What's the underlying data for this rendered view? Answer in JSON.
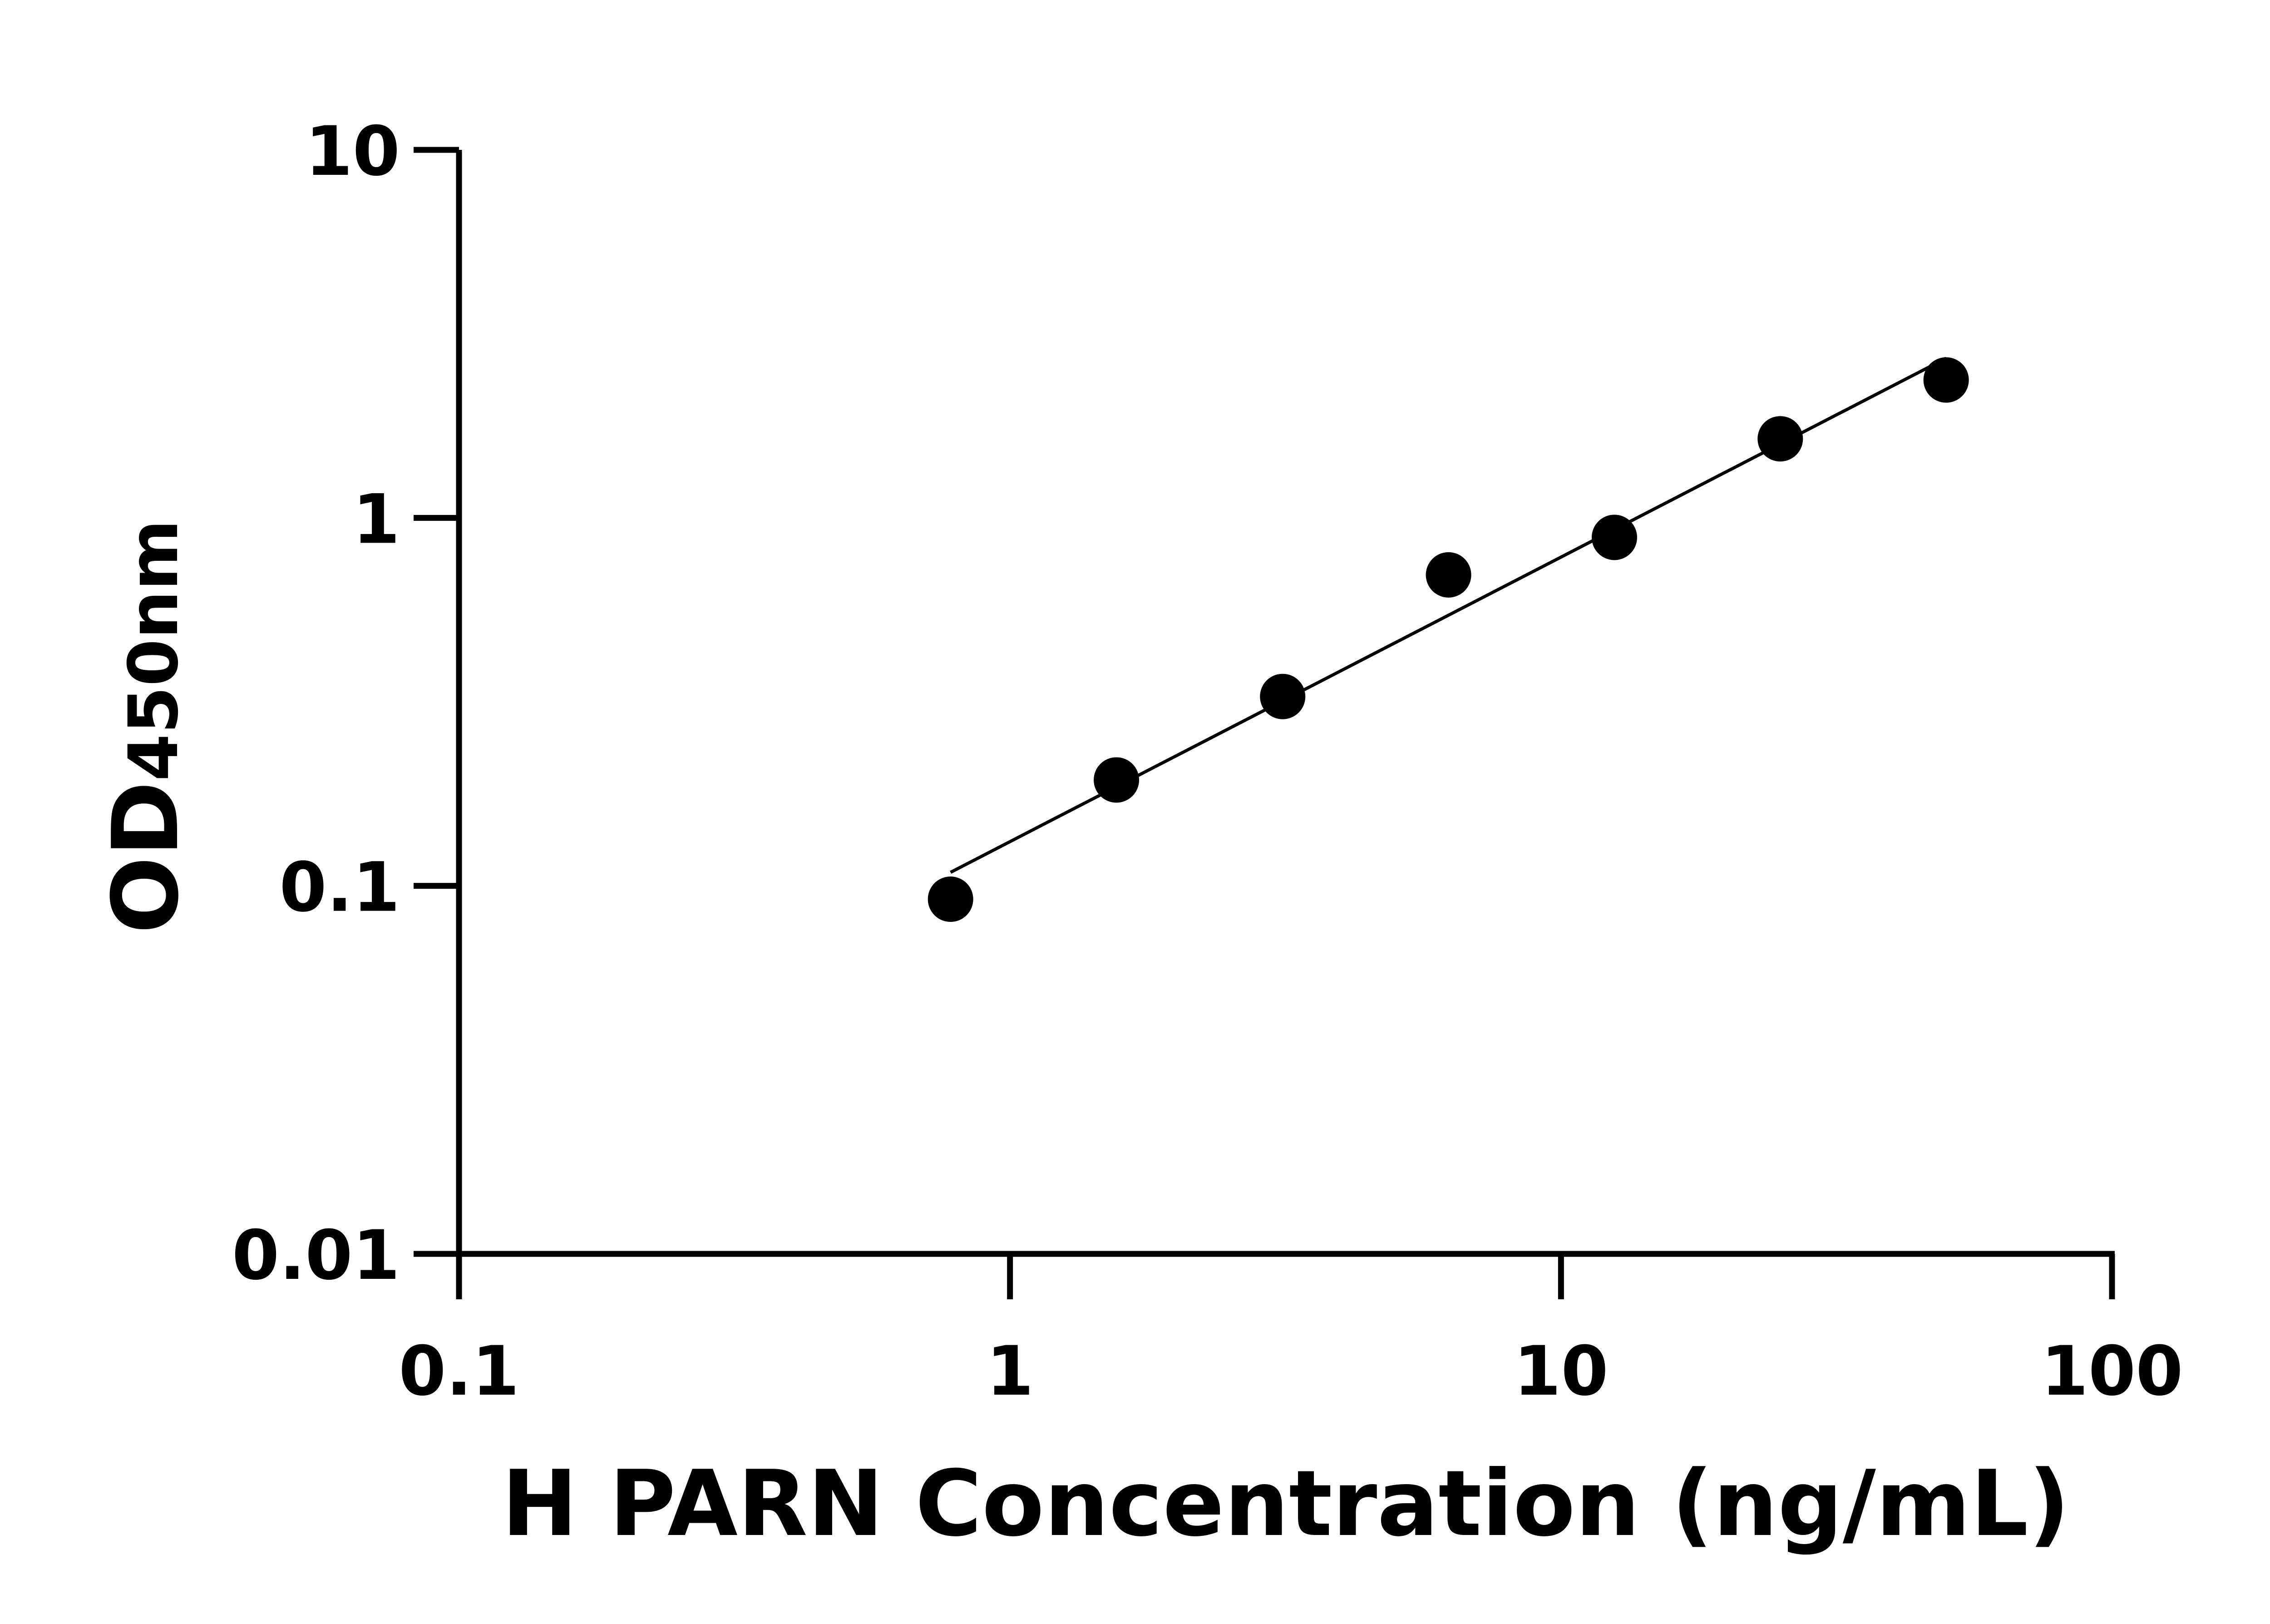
{
  "chart_data": {
    "type": "scatter",
    "title": "",
    "xlabel": "H PARN Concentration (ng/mL)",
    "ylabel_main": "OD",
    "ylabel_sub": "450nm",
    "x_scale": "log",
    "y_scale": "log",
    "xlim": [
      0.1,
      100
    ],
    "ylim": [
      0.01,
      10
    ],
    "x_ticks": [
      "0.1",
      "1",
      "10",
      "100"
    ],
    "y_ticks": [
      "0.01",
      "0.1",
      "1",
      "10"
    ],
    "grid": false,
    "legend": "none",
    "marker_color": "#000000",
    "fit_line": true,
    "points": [
      {
        "x": 0.78,
        "y": 0.092
      },
      {
        "x": 1.56,
        "y": 0.194
      },
      {
        "x": 3.125,
        "y": 0.327
      },
      {
        "x": 6.25,
        "y": 0.7
      },
      {
        "x": 12.5,
        "y": 0.885
      },
      {
        "x": 25,
        "y": 1.64
      },
      {
        "x": 50,
        "y": 2.37
      }
    ]
  }
}
